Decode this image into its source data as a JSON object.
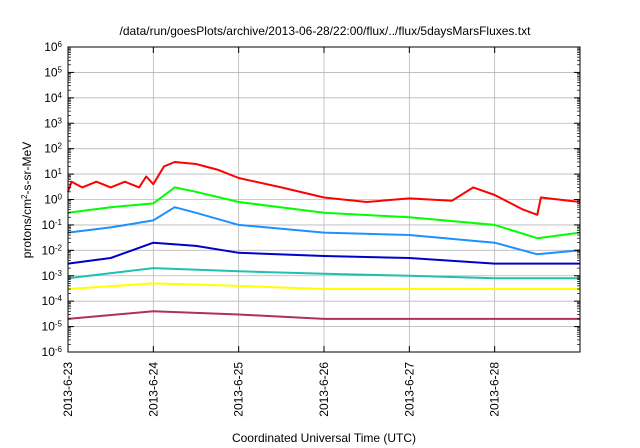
{
  "chart_data": {
    "type": "line",
    "title": "/data/run/goesPlots/archive/2013-06-28/22:00/flux/../flux/5daysMarsFluxes.txt",
    "xlabel": "Coordinated Universal Time (UTC)",
    "ylabel_parts": {
      "pre": "protons/cm",
      "sup": "2",
      "post": "-s-sr-MeV"
    },
    "yscale": "log",
    "ylim_exp": [
      -6,
      6
    ],
    "y_ticks": [
      {
        "base": "10",
        "exp": "-6"
      },
      {
        "base": "10",
        "exp": "-5"
      },
      {
        "base": "10",
        "exp": "-4"
      },
      {
        "base": "10",
        "exp": "-3"
      },
      {
        "base": "10",
        "exp": "-2"
      },
      {
        "base": "10",
        "exp": "-1"
      },
      {
        "base": "10",
        "exp": "0"
      },
      {
        "base": "10",
        "exp": "1"
      },
      {
        "base": "10",
        "exp": "2"
      },
      {
        "base": "10",
        "exp": "3"
      },
      {
        "base": "10",
        "exp": "4"
      },
      {
        "base": "10",
        "exp": "5"
      },
      {
        "base": "10",
        "exp": "6"
      }
    ],
    "x_range_days": [
      "2013-06-23",
      "2013-06-29"
    ],
    "x_ticks": [
      "2013-6-23",
      "2013-6-24",
      "2013-6-25",
      "2013-6-26",
      "2013-6-27",
      "2013-6-28"
    ],
    "grid": true,
    "series": [
      {
        "color": "#ff0000",
        "points": [
          [
            "2013-06-23 00:00",
            2
          ],
          [
            "2013-06-23 01:00",
            5
          ],
          [
            "2013-06-23 04:00",
            3
          ],
          [
            "2013-06-23 08:00",
            5
          ],
          [
            "2013-06-23 12:00",
            3
          ],
          [
            "2013-06-23 16:00",
            5
          ],
          [
            "2013-06-23 20:00",
            3
          ],
          [
            "2013-06-23 22:00",
            8
          ],
          [
            "2013-06-24 00:00",
            4
          ],
          [
            "2013-06-24 03:00",
            20
          ],
          [
            "2013-06-24 06:00",
            30
          ],
          [
            "2013-06-24 12:00",
            25
          ],
          [
            "2013-06-24 18:00",
            15
          ],
          [
            "2013-06-25 00:00",
            7
          ],
          [
            "2013-06-25 12:00",
            3
          ],
          [
            "2013-06-26 00:00",
            1.2
          ],
          [
            "2013-06-26 12:00",
            0.8
          ],
          [
            "2013-06-27 00:00",
            1.1
          ],
          [
            "2013-06-27 12:00",
            0.9
          ],
          [
            "2013-06-27 18:00",
            3
          ],
          [
            "2013-06-28 00:00",
            1.5
          ],
          [
            "2013-06-28 08:00",
            0.4
          ],
          [
            "2013-06-28 12:00",
            0.25
          ],
          [
            "2013-06-28 13:00",
            1.2
          ],
          [
            "2013-06-29 00:00",
            0.8
          ]
        ]
      },
      {
        "color": "#00ff00",
        "points": [
          [
            "2013-06-23 00:00",
            0.3
          ],
          [
            "2013-06-23 12:00",
            0.5
          ],
          [
            "2013-06-24 00:00",
            0.7
          ],
          [
            "2013-06-24 06:00",
            3
          ],
          [
            "2013-06-24 12:00",
            2
          ],
          [
            "2013-06-25 00:00",
            0.8
          ],
          [
            "2013-06-26 00:00",
            0.3
          ],
          [
            "2013-06-27 00:00",
            0.2
          ],
          [
            "2013-06-28 00:00",
            0.1
          ],
          [
            "2013-06-28 12:00",
            0.03
          ],
          [
            "2013-06-29 00:00",
            0.05
          ]
        ]
      },
      {
        "color": "#1e90ff",
        "points": [
          [
            "2013-06-23 00:00",
            0.05
          ],
          [
            "2013-06-23 12:00",
            0.08
          ],
          [
            "2013-06-24 00:00",
            0.15
          ],
          [
            "2013-06-24 06:00",
            0.5
          ],
          [
            "2013-06-24 12:00",
            0.3
          ],
          [
            "2013-06-25 00:00",
            0.1
          ],
          [
            "2013-06-26 00:00",
            0.05
          ],
          [
            "2013-06-27 00:00",
            0.04
          ],
          [
            "2013-06-28 00:00",
            0.02
          ],
          [
            "2013-06-28 12:00",
            0.007
          ],
          [
            "2013-06-29 00:00",
            0.01
          ]
        ]
      },
      {
        "color": "#0000cd",
        "points": [
          [
            "2013-06-23 00:00",
            0.003
          ],
          [
            "2013-06-23 12:00",
            0.005
          ],
          [
            "2013-06-24 00:00",
            0.02
          ],
          [
            "2013-06-24 12:00",
            0.015
          ],
          [
            "2013-06-25 00:00",
            0.008
          ],
          [
            "2013-06-26 00:00",
            0.006
          ],
          [
            "2013-06-27 00:00",
            0.005
          ],
          [
            "2013-06-28 00:00",
            0.003
          ],
          [
            "2013-06-29 00:00",
            0.003
          ]
        ]
      },
      {
        "color": "#20c0b0",
        "points": [
          [
            "2013-06-23 00:00",
            0.0008
          ],
          [
            "2013-06-24 00:00",
            0.002
          ],
          [
            "2013-06-25 00:00",
            0.0015
          ],
          [
            "2013-06-26 00:00",
            0.0012
          ],
          [
            "2013-06-27 00:00",
            0.001
          ],
          [
            "2013-06-28 00:00",
            0.0008
          ],
          [
            "2013-06-29 00:00",
            0.0008
          ]
        ]
      },
      {
        "color": "#ffff00",
        "points": [
          [
            "2013-06-23 00:00",
            0.0003
          ],
          [
            "2013-06-24 00:00",
            0.0005
          ],
          [
            "2013-06-25 00:00",
            0.0004
          ],
          [
            "2013-06-26 00:00",
            0.0003
          ],
          [
            "2013-06-27 00:00",
            0.0003
          ],
          [
            "2013-06-28 00:00",
            0.0003
          ],
          [
            "2013-06-29 00:00",
            0.0003
          ]
        ]
      },
      {
        "color": "#b03060",
        "points": [
          [
            "2013-06-23 00:00",
            2e-05
          ],
          [
            "2013-06-24 00:00",
            4e-05
          ],
          [
            "2013-06-25 00:00",
            3e-05
          ],
          [
            "2013-06-26 00:00",
            2e-05
          ],
          [
            "2013-06-27 00:00",
            2e-05
          ],
          [
            "2013-06-28 00:00",
            2e-05
          ],
          [
            "2013-06-29 00:00",
            2e-05
          ]
        ]
      }
    ]
  }
}
